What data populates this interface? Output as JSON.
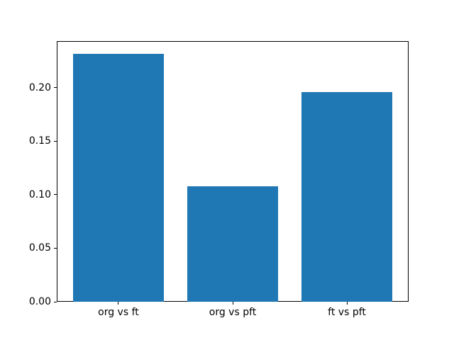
{
  "chart_data": {
    "type": "bar",
    "title": "",
    "xlabel": "",
    "ylabel": "",
    "categories": [
      "org vs ft",
      "org vs pft",
      "ft vs pft"
    ],
    "values": [
      0.232,
      0.108,
      0.196
    ],
    "ytick_labels": [
      "0.00",
      "0.05",
      "0.10",
      "0.15",
      "0.20"
    ],
    "ytick_values": [
      0.0,
      0.05,
      0.1,
      0.15,
      0.2
    ],
    "ylim": [
      0,
      0.2436
    ],
    "bar_color": "#1f77b4",
    "axis_color": "#000000",
    "text_color": "#000000",
    "background_color": "#ffffff",
    "grid": "off",
    "legend": "none",
    "bar_width_fraction": 0.8
  }
}
